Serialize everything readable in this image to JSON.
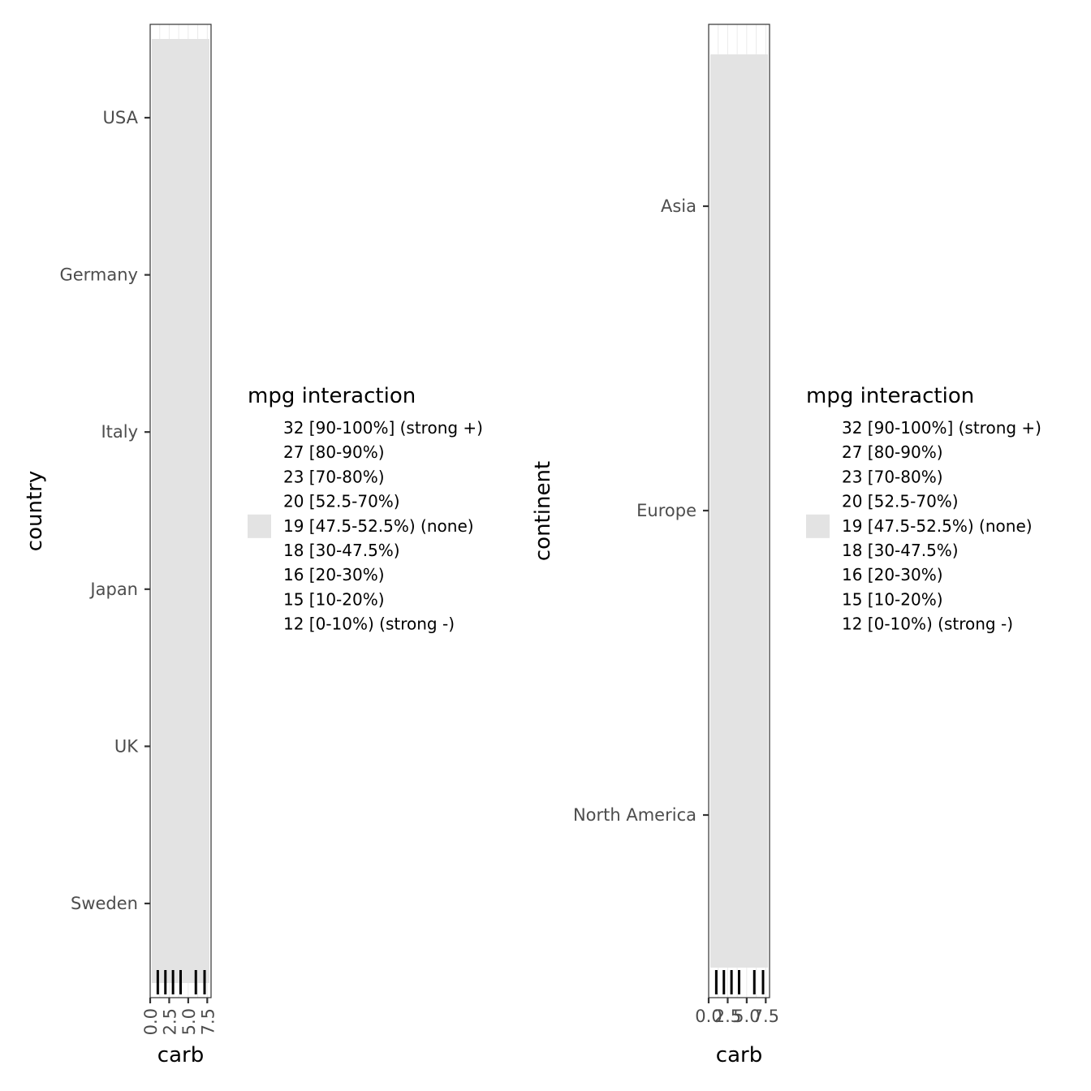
{
  "chart_data": [
    {
      "type": "heatmap",
      "xlabel": "carb",
      "ylabel": "country",
      "x_ticks": [
        "0.0",
        "2.5",
        "5.0",
        "7.5"
      ],
      "x_tick_values": [
        0,
        2.5,
        5,
        7.5
      ],
      "xlim": [
        0,
        8
      ],
      "x_tick_label_rotation": "vertical",
      "categories": [
        "USA",
        "Germany",
        "Italy",
        "Japan",
        "UK",
        "Sweden"
      ],
      "tile": {
        "x_range": [
          0,
          8
        ],
        "fill": "#e3e3e3",
        "label": "19 [47.5-52.5%] (none)"
      },
      "rug_x": [
        1,
        2,
        3,
        4,
        6,
        8
      ],
      "legend": {
        "title": "mpg interaction",
        "placement": "right",
        "entries": [
          {
            "label": "32 [90-100%] (strong +)",
            "color": "#ffffff"
          },
          {
            "label": "27 [80-90%)",
            "color": "#ffffff"
          },
          {
            "label": "23 [70-80%)",
            "color": "#ffffff"
          },
          {
            "label": "20 [52.5-70%)",
            "color": "#ffffff"
          },
          {
            "label": "19 [47.5-52.5%) (none)",
            "color": "#e3e3e3"
          },
          {
            "label": "18 [30-47.5%)",
            "color": "#ffffff"
          },
          {
            "label": "16 [20-30%)",
            "color": "#ffffff"
          },
          {
            "label": "15 [10-20%)",
            "color": "#ffffff"
          },
          {
            "label": "12 [0-10%) (strong -)",
            "color": "#ffffff"
          }
        ]
      }
    },
    {
      "type": "heatmap",
      "xlabel": "carb",
      "ylabel": "continent",
      "x_ticks": [
        "0.0",
        "2.5",
        "5.0",
        "7.5"
      ],
      "x_tick_values": [
        0,
        2.5,
        5,
        7.5
      ],
      "xlim": [
        0,
        8
      ],
      "x_tick_label_rotation": "horizontal",
      "categories": [
        "Asia",
        "Europe",
        "North America"
      ],
      "tile": {
        "x_range": [
          0,
          8
        ],
        "fill": "#e3e3e3",
        "label": "19 [47.5-52.5%] (none)"
      },
      "rug_x": [
        1,
        2,
        3,
        4,
        6,
        8
      ],
      "legend": {
        "title": "mpg interaction",
        "placement": "right",
        "entries": [
          {
            "label": "32 [90-100%] (strong +)",
            "color": "#ffffff"
          },
          {
            "label": "27 [80-90%)",
            "color": "#ffffff"
          },
          {
            "label": "23 [70-80%)",
            "color": "#ffffff"
          },
          {
            "label": "20 [52.5-70%)",
            "color": "#ffffff"
          },
          {
            "label": "19 [47.5-52.5%) (none)",
            "color": "#e3e3e3"
          },
          {
            "label": "18 [30-47.5%)",
            "color": "#ffffff"
          },
          {
            "label": "16 [20-30%)",
            "color": "#ffffff"
          },
          {
            "label": "15 [10-20%)",
            "color": "#ffffff"
          },
          {
            "label": "12 [0-10%) (strong -)",
            "color": "#ffffff"
          }
        ]
      }
    }
  ]
}
